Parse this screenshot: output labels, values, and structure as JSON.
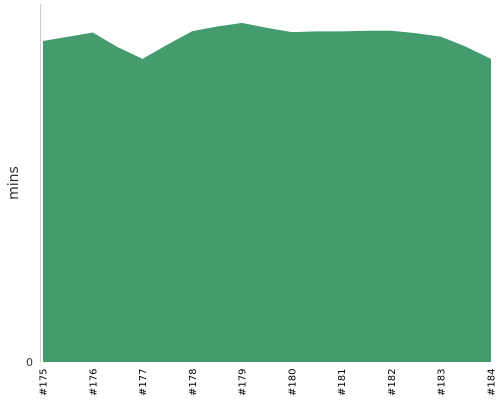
{
  "chart_data": {
    "type": "area",
    "title": "",
    "xlabel": "",
    "ylabel": "mins",
    "categories": [
      "#175",
      "#176",
      "#177",
      "#178",
      "#179",
      "#180",
      "#181",
      "#182",
      "#183",
      "#184"
    ],
    "x": [
      175,
      175.5,
      176,
      176.5,
      177,
      177.5,
      178,
      178.5,
      179,
      179.5,
      180,
      180.5,
      181,
      181.5,
      182,
      182.5,
      183,
      183.5,
      184
    ],
    "series": [
      {
        "values": [
          90.1,
          91.3,
          92.5,
          88.4,
          85.1,
          89.1,
          92.9,
          94.2,
          95.2,
          93.8,
          92.6,
          92.8,
          92.8,
          93.0,
          93.0,
          92.3,
          91.3,
          88.5,
          85.1
        ]
      }
    ],
    "ylim": [
      0,
      100.5
    ],
    "y_ticks": [
      "0"
    ],
    "colors": {
      "fill": "#449b6d",
      "axis": "#cccccc"
    },
    "grid": false,
    "legend": "none"
  }
}
